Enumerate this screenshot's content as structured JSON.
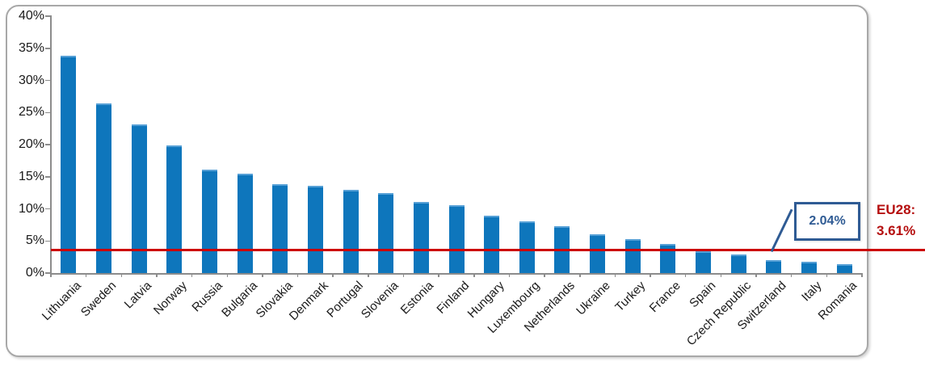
{
  "chart_data": {
    "type": "bar",
    "title": "",
    "xlabel": "",
    "ylabel": "",
    "categories": [
      "Lithuania",
      "Sweden",
      "Latvia",
      "Norway",
      "Russia",
      "Bulgaria",
      "Slovakia",
      "Denmark",
      "Portugal",
      "Slovenia",
      "Estonia",
      "Finland",
      "Hungary",
      "Luxembourg",
      "Netherlands",
      "Ukraine",
      "Turkey",
      "France",
      "Spain",
      "Czech Republic",
      "Switzerland",
      "Italy",
      "Romania"
    ],
    "values": [
      33.8,
      26.4,
      23.2,
      19.9,
      16.1,
      15.5,
      13.8,
      13.6,
      12.9,
      12.4,
      11.1,
      10.6,
      8.9,
      8.1,
      7.3,
      6.0,
      5.3,
      4.5,
      3.4,
      2.9,
      2.04,
      1.7,
      1.4
    ],
    "ylim": [
      0,
      40
    ],
    "ytick_step": 5,
    "ytick_labels": [
      "0%",
      "5%",
      "10%",
      "15%",
      "20%",
      "25%",
      "30%",
      "35%",
      "40%"
    ],
    "grid": false,
    "legend": false,
    "bar_color": "#0e76bc",
    "bar_top_highlight_color": "#56a0d6",
    "axis_color": "#8c8c8c",
    "reference_line": {
      "value": 3.61,
      "color": "#cc0000",
      "label_line1": "EU28:",
      "label_line2": "3.61%",
      "label_color": "#b50e0e"
    },
    "annotation": {
      "label": "2.04%",
      "target_category": "Switzerland",
      "target_value": 2.04,
      "box_color": "#2f5b94"
    }
  }
}
